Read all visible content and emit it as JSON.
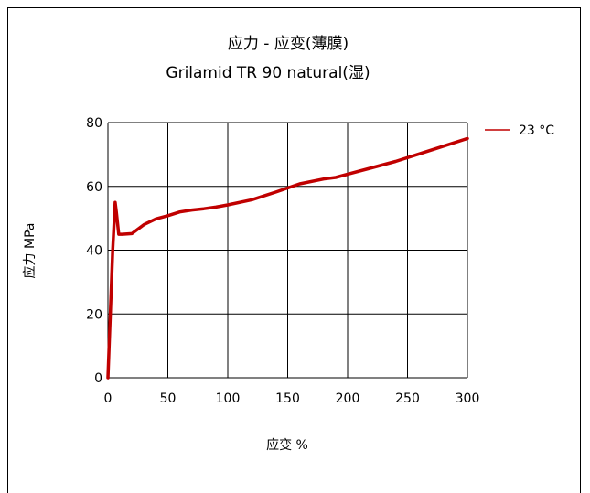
{
  "chart_data": {
    "type": "line",
    "title": "应力 - 应变(薄膜)",
    "subtitle": "Grilamid TR 90 natural(湿)",
    "xlabel": "应变 %",
    "ylabel": "应力 MPa",
    "xlim": [
      0,
      300
    ],
    "ylim": [
      0,
      80
    ],
    "xticks": [
      "0",
      "50",
      "100",
      "150",
      "200",
      "250",
      "300"
    ],
    "yticks": [
      "0",
      "20",
      "40",
      "60",
      "80"
    ],
    "grid": true,
    "legend_position": "top-right",
    "series": [
      {
        "name": "23 °C",
        "color": "#c00000",
        "points": [
          [
            0,
            0
          ],
          [
            2,
            20
          ],
          [
            4,
            40
          ],
          [
            6,
            55
          ],
          [
            7,
            52
          ],
          [
            9,
            45
          ],
          [
            12,
            45
          ],
          [
            20,
            45.2
          ],
          [
            30,
            48
          ],
          [
            40,
            49.8
          ],
          [
            50,
            50.8
          ],
          [
            60,
            52
          ],
          [
            70,
            52.6
          ],
          [
            80,
            53
          ],
          [
            90,
            53.5
          ],
          [
            100,
            54.2
          ],
          [
            120,
            55.8
          ],
          [
            140,
            58.2
          ],
          [
            160,
            60.8
          ],
          [
            180,
            62.3
          ],
          [
            190,
            62.8
          ],
          [
            200,
            63.8
          ],
          [
            220,
            65.8
          ],
          [
            240,
            67.8
          ],
          [
            260,
            70.2
          ],
          [
            280,
            72.6
          ],
          [
            300,
            75
          ]
        ]
      }
    ]
  }
}
